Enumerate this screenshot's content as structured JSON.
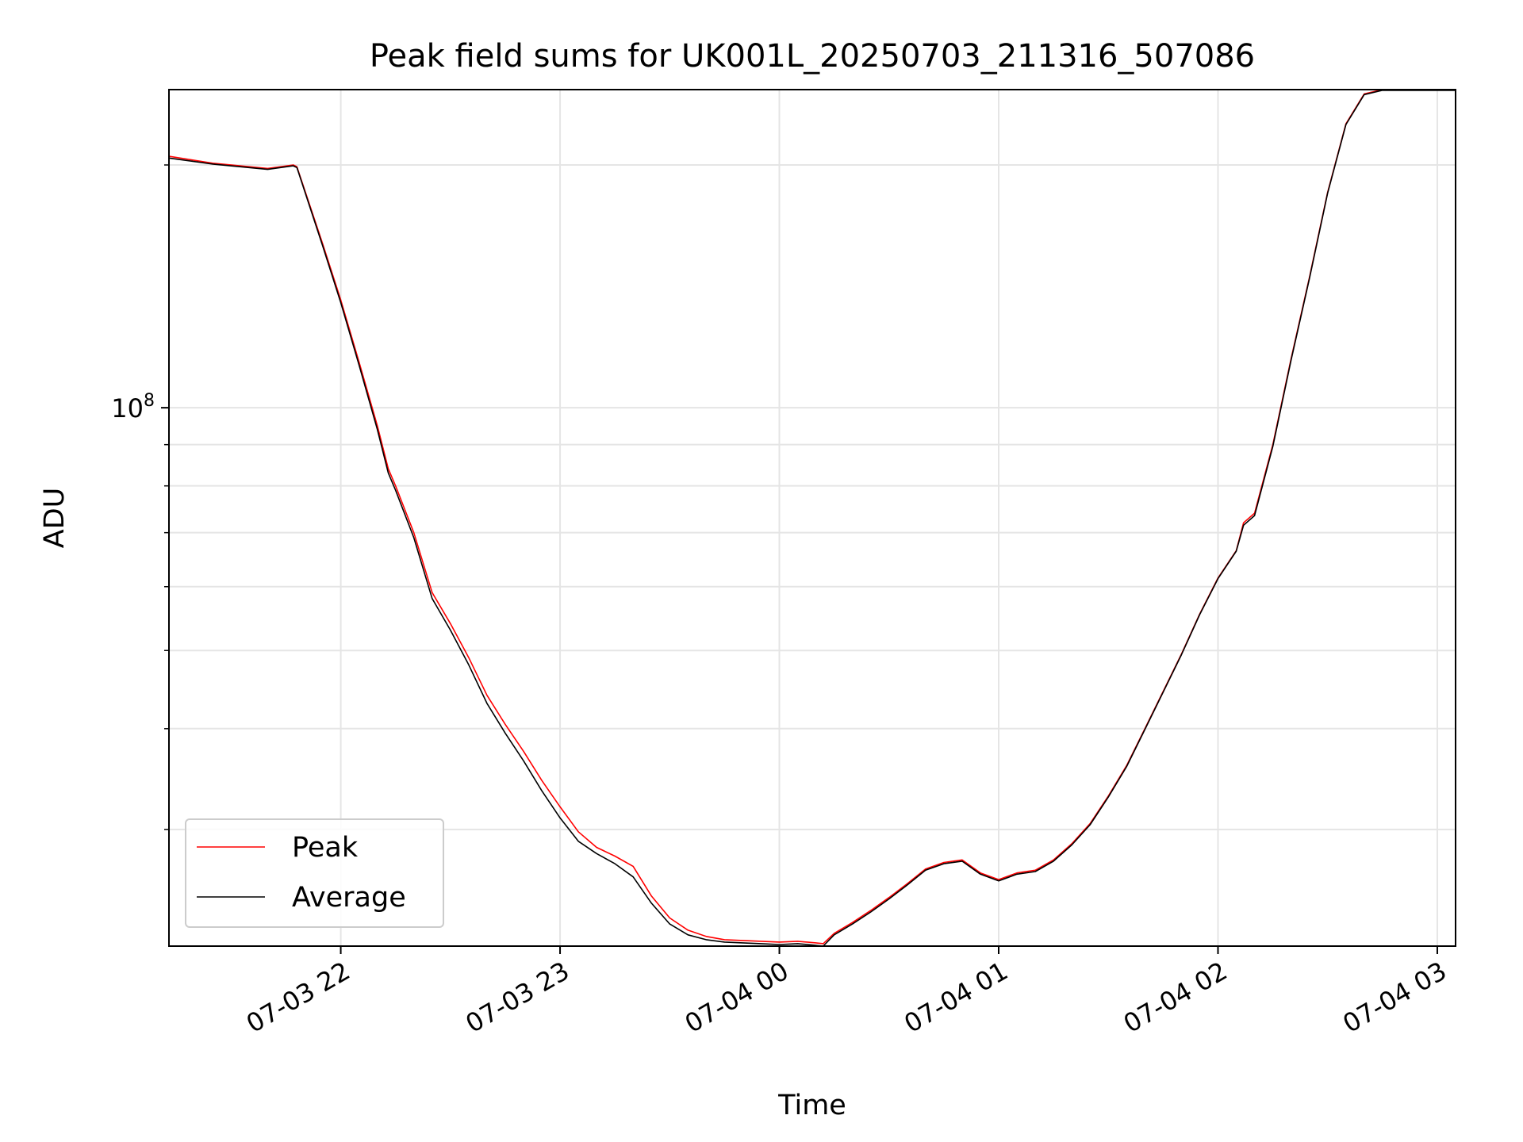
{
  "chart_data": {
    "type": "line",
    "title": "Peak field sums for UK001L_20250703_211316_507086",
    "xlabel": "Time",
    "ylabel": "ADU",
    "y_scale": "log",
    "ylim": [
      21500000,
      248000000
    ],
    "xlim": [
      "07-03 21:13",
      "07-04 03:05"
    ],
    "x_ticks": [
      {
        "label": "07-03 22",
        "value": "07-03 22:00"
      },
      {
        "label": "07-03 23",
        "value": "07-03 23:00"
      },
      {
        "label": "07-04 00",
        "value": "07-04 00:00"
      },
      {
        "label": "07-04 01",
        "value": "07-04 01:00"
      },
      {
        "label": "07-04 02",
        "value": "07-04 02:00"
      },
      {
        "label": "07-04 03",
        "value": "07-04 03:00"
      }
    ],
    "y_major_ticks": [
      {
        "base": "10",
        "exp": "8",
        "value": 100000000
      }
    ],
    "y_minor_ticks": [
      30000000,
      40000000,
      50000000,
      60000000,
      70000000,
      80000000,
      90000000,
      200000000
    ],
    "grid": true,
    "legend_position": "lower-left",
    "series": [
      {
        "name": "Peak",
        "color": "#ff0000",
        "x": [
          "07-03 21:13",
          "07-03 21:25",
          "07-03 21:40",
          "07-03 21:47",
          "07-03 21:48",
          "07-03 21:55",
          "07-03 22:00",
          "07-03 22:05",
          "07-03 22:10",
          "07-03 22:13",
          "07-03 22:15",
          "07-03 22:20",
          "07-03 22:25",
          "07-03 22:30",
          "07-03 22:35",
          "07-03 22:40",
          "07-03 22:45",
          "07-03 22:50",
          "07-03 22:55",
          "07-03 23:00",
          "07-03 23:05",
          "07-03 23:10",
          "07-03 23:15",
          "07-03 23:20",
          "07-03 23:25",
          "07-03 23:30",
          "07-03 23:35",
          "07-03 23:40",
          "07-03 23:45",
          "07-03 23:50",
          "07-03 23:55",
          "07-04 00:00",
          "07-04 00:05",
          "07-04 00:10",
          "07-04 00:12",
          "07-04 00:15",
          "07-04 00:20",
          "07-04 00:25",
          "07-04 00:30",
          "07-04 00:35",
          "07-04 00:40",
          "07-04 00:45",
          "07-04 00:50",
          "07-04 00:55",
          "07-04 01:00",
          "07-04 01:05",
          "07-04 01:10",
          "07-04 01:15",
          "07-04 01:20",
          "07-04 01:25",
          "07-04 01:30",
          "07-04 01:35",
          "07-04 01:40",
          "07-04 01:45",
          "07-04 01:50",
          "07-04 01:55",
          "07-04 02:00",
          "07-04 02:05",
          "07-04 02:07",
          "07-04 02:10",
          "07-04 02:15",
          "07-04 02:20",
          "07-04 02:25",
          "07-04 02:30",
          "07-04 02:35",
          "07-04 02:40",
          "07-04 02:45",
          "07-04 02:50",
          "07-04 02:55",
          "07-04 03:00",
          "07-04 03:05"
        ],
        "y": [
          205000000,
          201000000,
          198000000,
          200000000,
          199000000,
          160000000,
          136000000,
          114000000,
          95000000,
          84000000,
          80000000,
          70000000,
          59000000,
          54000000,
          49000000,
          44000000,
          40500000,
          37500000,
          34500000,
          32000000,
          29800000,
          28500000,
          27800000,
          27000000,
          24800000,
          23300000,
          22500000,
          22100000,
          21900000,
          21850000,
          21800000,
          21750000,
          21800000,
          21700000,
          21650000,
          22300000,
          23000000,
          23800000,
          24700000,
          25700000,
          26800000,
          27300000,
          27500000,
          26500000,
          26000000,
          26500000,
          26700000,
          27500000,
          28800000,
          30500000,
          33000000,
          36000000,
          40000000,
          44500000,
          49500000,
          55500000,
          61500000,
          66500000,
          72000000,
          74000000,
          90000000,
          115000000,
          145000000,
          185000000,
          225000000,
          245000000,
          248000000,
          248000000,
          248000000,
          248000000,
          248000000
        ]
      },
      {
        "name": "Average",
        "color": "#000000",
        "x": [
          "07-03 21:13",
          "07-03 21:25",
          "07-03 21:40",
          "07-03 21:47",
          "07-03 21:48",
          "07-03 21:55",
          "07-03 22:00",
          "07-03 22:05",
          "07-03 22:10",
          "07-03 22:13",
          "07-03 22:15",
          "07-03 22:20",
          "07-03 22:25",
          "07-03 22:30",
          "07-03 22:35",
          "07-03 22:40",
          "07-03 22:45",
          "07-03 22:50",
          "07-03 22:55",
          "07-03 23:00",
          "07-03 23:05",
          "07-03 23:10",
          "07-03 23:15",
          "07-03 23:20",
          "07-03 23:25",
          "07-03 23:30",
          "07-03 23:35",
          "07-03 23:40",
          "07-03 23:45",
          "07-03 23:50",
          "07-03 23:55",
          "07-04 00:00",
          "07-04 00:05",
          "07-04 00:10",
          "07-04 00:12",
          "07-04 00:15",
          "07-04 00:20",
          "07-04 00:25",
          "07-04 00:30",
          "07-04 00:35",
          "07-04 00:40",
          "07-04 00:45",
          "07-04 00:50",
          "07-04 00:55",
          "07-04 01:00",
          "07-04 01:05",
          "07-04 01:10",
          "07-04 01:15",
          "07-04 01:20",
          "07-04 01:25",
          "07-04 01:30",
          "07-04 01:35",
          "07-04 01:40",
          "07-04 01:45",
          "07-04 01:50",
          "07-04 01:55",
          "07-04 02:00",
          "07-04 02:05",
          "07-04 02:07",
          "07-04 02:10",
          "07-04 02:15",
          "07-04 02:20",
          "07-04 02:25",
          "07-04 02:30",
          "07-04 02:35",
          "07-04 02:40",
          "07-04 02:45",
          "07-04 02:50",
          "07-04 02:55",
          "07-04 03:00",
          "07-04 03:05"
        ],
        "y": [
          204000000,
          200500000,
          197500000,
          199500000,
          198500000,
          159000000,
          135000000,
          113000000,
          94000000,
          83000000,
          79000000,
          69000000,
          58000000,
          53000000,
          48000000,
          43000000,
          39500000,
          36500000,
          33500000,
          31000000,
          29000000,
          28000000,
          27200000,
          26200000,
          24300000,
          22900000,
          22200000,
          21900000,
          21750000,
          21700000,
          21650000,
          21600000,
          21650000,
          21550000,
          21500000,
          22200000,
          22900000,
          23700000,
          24600000,
          25600000,
          26700000,
          27200000,
          27400000,
          26400000,
          25900000,
          26400000,
          26600000,
          27400000,
          28700000,
          30400000,
          32900000,
          35900000,
          39900000,
          44400000,
          49400000,
          55400000,
          61400000,
          66400000,
          71500000,
          73500000,
          89500000,
          114500000,
          144500000,
          184500000,
          224500000,
          244500000,
          247500000,
          247500000,
          247500000,
          247500000,
          247500000
        ]
      }
    ]
  }
}
